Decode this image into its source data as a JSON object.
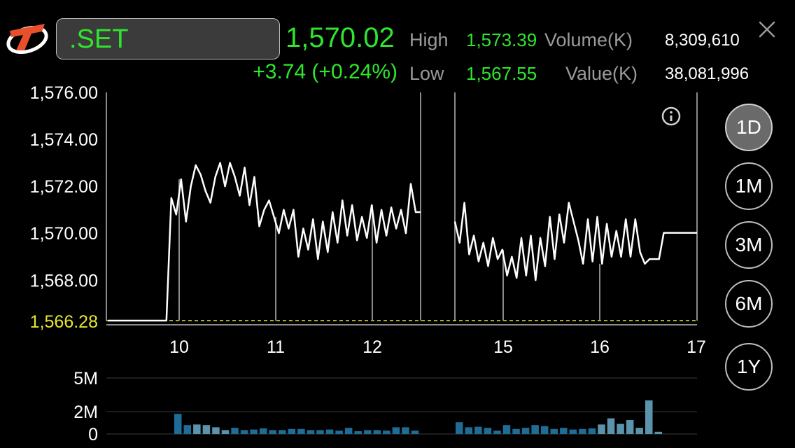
{
  "header": {
    "symbol": ".SET",
    "last_price": "1,570.02",
    "change": "+3.74 (+0.24%)",
    "high_label": "High",
    "high_value": "1,573.39",
    "low_label": "Low",
    "low_value": "1,567.55",
    "volume_label": "Volume(K)",
    "volume_value": "8,309,610",
    "value_label": "Value(K)",
    "value_value": "38,081,996"
  },
  "range_buttons": [
    {
      "label": "1D",
      "active": true
    },
    {
      "label": "1M",
      "active": false
    },
    {
      "label": "3M",
      "active": false
    },
    {
      "label": "6M",
      "active": false
    },
    {
      "label": "1Y",
      "active": false
    }
  ],
  "colors": {
    "up": "#2ee62e",
    "line": "#ffffff",
    "prev_close": "#e6e62e",
    "volume_bar_1": "#1f6d96",
    "volume_bar_2": "#5b93ad"
  },
  "chart_data": [
    {
      "type": "line",
      "x_tick_labels": [
        "10",
        "11",
        "12",
        "15",
        "16",
        "17"
      ],
      "y_tick_labels": [
        "1,576.00",
        "1,574.00",
        "1,572.00",
        "1,570.00",
        "1,568.00"
      ],
      "prev_close_label": "1,566.28",
      "prev_close": 1566.28,
      "ylim": [
        1566.28,
        1576.0
      ],
      "grid": true,
      "series": [
        {
          "session": "morning",
          "values": [
            1566.28,
            1566.28,
            1566.28,
            1566.28,
            1566.28,
            1566.28,
            1566.28,
            1566.28,
            1566.28,
            1566.28,
            1566.28,
            1566.28,
            1566.28,
            1571.5,
            1570.8,
            1572.3,
            1570.5,
            1572.0,
            1572.9,
            1572.5,
            1571.8,
            1571.3,
            1572.4,
            1573.0,
            1572.0,
            1573.0,
            1572.4,
            1571.6,
            1572.8,
            1571.2,
            1572.4,
            1570.3,
            1571.0,
            1571.4,
            1570.7,
            1570.0,
            1571.0,
            1570.2,
            1571.0,
            1569.0,
            1570.2,
            1569.3,
            1570.6,
            1568.9,
            1570.5,
            1569.2,
            1570.9,
            1569.6,
            1571.4,
            1569.9,
            1571.2,
            1569.7,
            1570.7,
            1569.8,
            1571.2,
            1569.6,
            1571.0,
            1569.9,
            1571.1,
            1570.2,
            1571.0,
            1570.0,
            1572.1,
            1570.9,
            1570.9
          ]
        },
        {
          "session": "afternoon",
          "values": [
            1570.5,
            1569.6,
            1571.3,
            1569.1,
            1569.9,
            1568.8,
            1569.6,
            1568.6,
            1569.8,
            1568.9,
            1569.3,
            1568.2,
            1569.0,
            1568.1,
            1569.8,
            1568.2,
            1569.9,
            1568.0,
            1569.8,
            1568.6,
            1570.7,
            1568.9,
            1570.8,
            1569.6,
            1571.3,
            1570.5,
            1569.7,
            1568.7,
            1570.6,
            1568.8,
            1570.7,
            1568.7,
            1570.4,
            1569.0,
            1570.1,
            1569.0,
            1570.6,
            1569.0,
            1570.6,
            1569.2,
            1568.7,
            1568.9,
            1568.9,
            1568.9,
            1570.02,
            1570.02,
            1570.02,
            1570.02,
            1570.02,
            1570.02,
            1570.02,
            1570.02
          ]
        }
      ]
    },
    {
      "type": "bar",
      "y_tick_labels": [
        "5M",
        "2M",
        "0"
      ],
      "ylim": [
        0,
        5
      ],
      "series": [
        {
          "session": "morning",
          "values": [
            1.8,
            0.8,
            0.85,
            0.8,
            0.6,
            0.35,
            0.55,
            0.35,
            0.4,
            0.5,
            0.35,
            0.35,
            0.45,
            0.45,
            0.35,
            0.35,
            0.4,
            0.3,
            0.55,
            0.25,
            0.35,
            0.35,
            0.3,
            0.6,
            0.6,
            0.3
          ]
        },
        {
          "session": "afternoon",
          "values": [
            1.05,
            0.6,
            0.65,
            0.55,
            0.3,
            0.8,
            0.45,
            0.55,
            0.8,
            0.7,
            0.45,
            0.55,
            0.4,
            0.45,
            0.5,
            0.85,
            1.4,
            0.9,
            1.25,
            0.55,
            3.0,
            0.2
          ]
        }
      ]
    }
  ]
}
